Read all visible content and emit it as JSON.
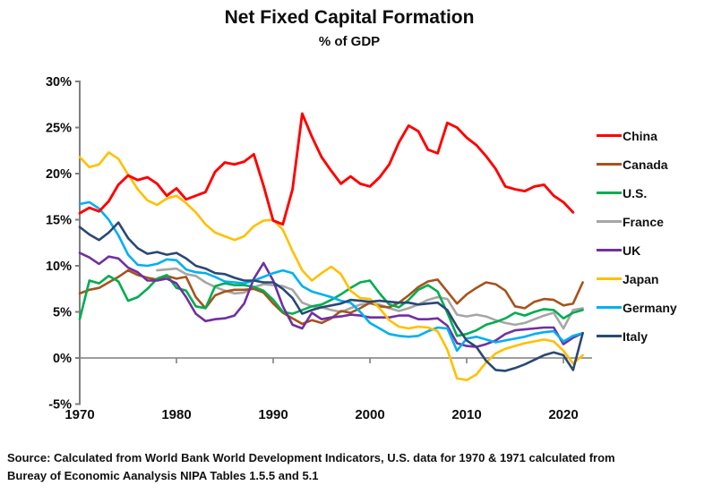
{
  "title": "Net Fixed Capital Formation",
  "subtitle": "% of GDP",
  "source_line1": "Source:  Calculated from World Bank World Development Indicators, U.S. data for 1970 & 1971 calculated from",
  "source_line2": "Bureay of Economic Aanalysis NIPA Tables 1.5.5 and 5.1",
  "chart_data": {
    "type": "line",
    "title": "Net Fixed Capital Formation",
    "subtitle": "% of GDP",
    "xlabel": "",
    "ylabel": "",
    "xlim": [
      1970,
      2023
    ],
    "ylim": [
      -5,
      30
    ],
    "grid": "zero-line-only",
    "legend_position": "right",
    "axis_color": "#7f7f7f",
    "x_axis": {
      "tick_labels": [
        "1970",
        "1980",
        "1990",
        "2000",
        "2010",
        "2020"
      ],
      "tick_values": [
        1970,
        1980,
        1990,
        2000,
        2010,
        2020
      ]
    },
    "y_axis": {
      "tick_labels": [
        "30%",
        "25%",
        "20%",
        "15%",
        "10%",
        "5%",
        "0%",
        "-5%"
      ],
      "tick_values": [
        30,
        25,
        20,
        15,
        10,
        5,
        0,
        -5
      ]
    },
    "series": [
      {
        "name": "China",
        "color": "#ff0000",
        "start_year": 1970,
        "values": [
          15.7,
          16.3,
          15.9,
          17.0,
          18.8,
          19.8,
          19.3,
          19.6,
          18.9,
          17.6,
          18.4,
          17.2,
          17.6,
          18.0,
          20.2,
          21.2,
          21.0,
          21.3,
          22.1,
          18.7,
          14.9,
          14.5,
          18.3,
          26.5,
          24.0,
          21.8,
          20.3,
          18.9,
          19.7,
          18.9,
          18.6,
          19.6,
          21.0,
          23.4,
          25.2,
          24.6,
          22.6,
          22.2,
          25.5,
          25.0,
          23.9,
          23.1,
          21.9,
          20.5,
          18.6,
          18.3,
          18.1,
          18.6,
          18.8,
          17.6,
          16.9,
          15.8
        ]
      },
      {
        "name": "Canada",
        "color": "#a6531c",
        "start_year": 1970,
        "values": [
          7.0,
          7.4,
          7.6,
          8.2,
          8.8,
          9.5,
          9.0,
          8.7,
          8.5,
          8.9,
          8.6,
          8.8,
          6.6,
          5.4,
          6.8,
          7.2,
          7.4,
          7.4,
          7.5,
          7.1,
          5.9,
          4.9,
          4.3,
          3.7,
          4.1,
          3.8,
          4.3,
          5.1,
          4.9,
          5.4,
          6.0,
          5.6,
          5.5,
          6.0,
          6.8,
          7.7,
          8.3,
          8.5,
          7.2,
          5.9,
          6.9,
          7.6,
          8.2,
          8.0,
          7.3,
          5.6,
          5.4,
          6.1,
          6.4,
          6.3,
          5.7,
          5.9,
          8.2
        ]
      },
      {
        "name": "U.S.",
        "color": "#00ad50",
        "start_year": 1970,
        "values": [
          4.2,
          8.4,
          8.1,
          8.9,
          8.3,
          6.2,
          6.6,
          7.5,
          8.6,
          9.0,
          7.6,
          7.3,
          5.6,
          5.4,
          7.8,
          8.1,
          7.9,
          7.9,
          7.7,
          7.3,
          6.3,
          5.0,
          4.8,
          5.2,
          5.6,
          5.8,
          6.3,
          6.9,
          7.6,
          8.2,
          8.4,
          7.0,
          5.8,
          5.5,
          6.3,
          7.4,
          7.9,
          7.2,
          4.9,
          2.4,
          2.6,
          3.0,
          3.6,
          3.9,
          4.3,
          4.9,
          4.6,
          5.0,
          5.3,
          5.2,
          4.3,
          4.9,
          5.2
        ]
      },
      {
        "name": "France",
        "color": "#a6a6a6",
        "start_year": 1978,
        "values": [
          9.5,
          9.6,
          9.7,
          9.1,
          8.9,
          8.2,
          7.7,
          7.3,
          7.0,
          7.1,
          7.7,
          8.0,
          7.9,
          7.8,
          7.4,
          6.0,
          5.6,
          5.5,
          5.2,
          5.0,
          5.4,
          5.8,
          5.9,
          5.8,
          5.4,
          5.1,
          5.4,
          5.8,
          6.3,
          6.6,
          6.4,
          4.7,
          4.5,
          4.7,
          4.5,
          4.1,
          3.8,
          3.6,
          3.8,
          4.2,
          4.6,
          4.9,
          3.2,
          5.2,
          5.4
        ]
      },
      {
        "name": "UK",
        "color": "#7030a0",
        "start_year": 1970,
        "values": [
          11.4,
          10.9,
          10.2,
          11.0,
          10.8,
          9.8,
          9.3,
          8.4,
          8.4,
          8.6,
          8.1,
          6.6,
          4.8,
          4.0,
          4.2,
          4.3,
          4.6,
          5.9,
          8.6,
          10.3,
          8.4,
          5.6,
          3.6,
          3.2,
          4.9,
          4.2,
          4.4,
          4.5,
          4.7,
          4.6,
          4.4,
          4.4,
          4.4,
          4.6,
          4.6,
          4.2,
          4.2,
          4.3,
          3.5,
          1.6,
          1.3,
          1.2,
          1.5,
          1.9,
          2.6,
          3.0,
          3.1,
          3.2,
          3.3,
          3.3,
          1.5,
          2.2,
          2.7
        ]
      },
      {
        "name": "Japan",
        "color": "#ffc000",
        "start_year": 1970,
        "values": [
          21.8,
          20.7,
          21.0,
          22.3,
          21.6,
          19.9,
          18.3,
          17.1,
          16.6,
          17.3,
          17.6,
          16.8,
          15.8,
          14.5,
          13.6,
          13.2,
          12.8,
          13.2,
          14.3,
          14.9,
          15.0,
          13.9,
          11.6,
          9.5,
          8.4,
          9.2,
          9.9,
          9.1,
          7.3,
          6.5,
          6.4,
          5.4,
          4.1,
          3.4,
          3.2,
          3.4,
          3.3,
          2.9,
          0.9,
          -2.2,
          -2.4,
          -1.8,
          -0.5,
          0.5,
          1.0,
          1.3,
          1.6,
          1.8,
          2.0,
          1.8,
          0.8,
          -0.6,
          0.3
        ]
      },
      {
        "name": "Germany",
        "color": "#00b0f0",
        "start_year": 1970,
        "values": [
          16.7,
          16.9,
          16.2,
          15.0,
          13.3,
          11.2,
          10.1,
          10.0,
          10.2,
          10.7,
          10.6,
          9.6,
          9.3,
          9.2,
          8.8,
          8.3,
          8.2,
          8.1,
          8.4,
          8.8,
          9.2,
          9.5,
          9.2,
          7.8,
          7.2,
          6.9,
          6.6,
          6.2,
          6.0,
          5.0,
          3.8,
          3.2,
          2.6,
          2.4,
          2.3,
          2.4,
          2.9,
          3.3,
          3.2,
          0.8,
          2.1,
          2.3,
          2.0,
          1.7,
          1.9,
          2.1,
          2.3,
          2.6,
          2.8,
          2.9,
          1.8,
          2.4,
          2.7
        ]
      },
      {
        "name": "Italy",
        "color": "#2a4875",
        "start_year": 1970,
        "values": [
          14.2,
          13.4,
          12.8,
          13.6,
          14.7,
          13.0,
          11.9,
          11.3,
          11.5,
          11.2,
          11.4,
          10.8,
          10.0,
          9.7,
          9.2,
          9.1,
          8.7,
          8.4,
          8.4,
          8.2,
          8.2,
          7.5,
          6.5,
          4.8,
          5.2,
          5.5,
          5.7,
          5.9,
          6.3,
          6.2,
          6.1,
          6.2,
          6.1,
          6.0,
          6.0,
          5.8,
          5.9,
          6.0,
          5.2,
          3.4,
          1.9,
          1.2,
          -0.3,
          -1.3,
          -1.4,
          -1.1,
          -0.7,
          -0.2,
          0.3,
          0.6,
          0.3,
          -1.3,
          2.7
        ]
      }
    ]
  }
}
